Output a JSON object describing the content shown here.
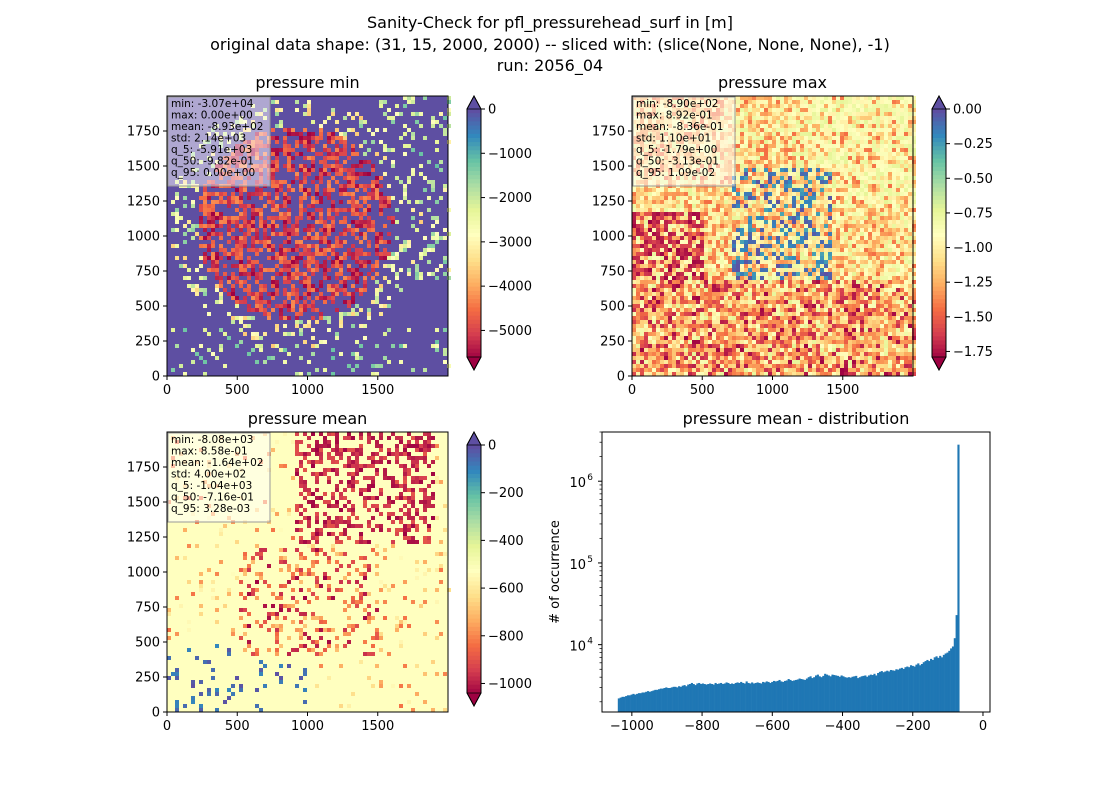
{
  "figure": {
    "title_lines": [
      "Sanity-Check for pfl_pressurehead_surf in [m]",
      "original data shape: (31, 15, 2000, 2000) -- sliced with: (slice(None, None, None), -1)",
      "run: 2056_04"
    ]
  },
  "chart_data": [
    {
      "type": "heatmap",
      "title": "pressure min",
      "xlim": [
        0,
        2000
      ],
      "ylim": [
        0,
        2000
      ],
      "x_ticks": [
        0,
        500,
        1000,
        1500
      ],
      "y_ticks": [
        0,
        250,
        500,
        750,
        1000,
        1250,
        1500,
        1750
      ],
      "colorbar": {
        "cmap": "Spectral",
        "range": [
          -5600,
          0
        ],
        "ticks": [
          "0",
          "−1000",
          "−2000",
          "−3000",
          "−4000",
          "−5000"
        ],
        "tick_values": [
          0,
          -1000,
          -2000,
          -3000,
          -4000,
          -5000
        ],
        "extend": "both"
      },
      "stats": [
        "min: -3.07e+04",
        "max: 0.00e+00",
        "mean: -8.93e+02",
        "std: 2.14e+03",
        "q_5: -5.91e+03",
        "q_50: -9.82e-01",
        "q_95: 0.00e+00"
      ]
    },
    {
      "type": "heatmap",
      "title": "pressure max",
      "xlim": [
        0,
        2000
      ],
      "ylim": [
        0,
        2000
      ],
      "x_ticks": [
        0,
        500,
        1000,
        1500
      ],
      "y_ticks": [
        0,
        250,
        500,
        750,
        1000,
        1250,
        1500,
        1750
      ],
      "colorbar": {
        "cmap": "Spectral",
        "range": [
          -1.79,
          0.0
        ],
        "ticks": [
          "0.00",
          "−0.25",
          "−0.50",
          "−0.75",
          "−1.00",
          "−1.25",
          "−1.50",
          "−1.75"
        ],
        "tick_values": [
          0,
          -0.25,
          -0.5,
          -0.75,
          -1.0,
          -1.25,
          -1.5,
          -1.75
        ],
        "extend": "both"
      },
      "stats": [
        "min: -8.90e+02",
        "max: 8.92e-01",
        "mean: -8.36e-01",
        "std: 1.10e+01",
        "q_5: -1.79e+00",
        "q_50: -3.13e-01",
        "q_95: 1.09e-02"
      ]
    },
    {
      "type": "heatmap",
      "title": "pressure mean",
      "xlim": [
        0,
        2000
      ],
      "ylim": [
        0,
        2000
      ],
      "x_ticks": [
        0,
        500,
        1000,
        1500
      ],
      "y_ticks": [
        0,
        250,
        500,
        750,
        1000,
        1250,
        1500,
        1750
      ],
      "colorbar": {
        "cmap": "Spectral",
        "range": [
          -1040,
          0
        ],
        "ticks": [
          "0",
          "−200",
          "−400",
          "−600",
          "−800",
          "−1000"
        ],
        "tick_values": [
          0,
          -200,
          -400,
          -600,
          -800,
          -1000
        ],
        "extend": "both"
      },
      "stats": [
        "min: -8.08e+03",
        "max: 8.58e-01",
        "mean: -1.64e+02",
        "std: 4.00e+02",
        "q_5: -1.04e+03",
        "q_50: -7.16e-01",
        "q_95: 3.28e-03"
      ]
    },
    {
      "type": "bar",
      "title": "pressure mean - distribution",
      "ylabel": "# of occurrence",
      "xlabel": "",
      "yscale": "log",
      "xlim": [
        -1085,
        20
      ],
      "ylim": [
        1500,
        4000000
      ],
      "x_ticks": [
        -1000,
        -800,
        -600,
        -400,
        -200,
        0
      ],
      "x_tick_labels": [
        "−1000",
        "−800",
        "−600",
        "−400",
        "−200",
        "0"
      ],
      "y_ticks": [
        10000,
        100000,
        1000000
      ],
      "y_tick_labels": [
        "10",
        "10",
        "10"
      ],
      "y_tick_exponents": [
        "4",
        "5",
        "6"
      ],
      "bar_color": "#1f77b4",
      "bins": {
        "start": -1040,
        "width": 5.2
      },
      "values": [
        2200,
        2250,
        2300,
        2300,
        2350,
        2400,
        2400,
        2450,
        2500,
        2450,
        2500,
        2550,
        2550,
        2600,
        2600,
        2650,
        2700,
        2650,
        2700,
        2750,
        2800,
        2800,
        2850,
        2900,
        2900,
        2950,
        3000,
        2950,
        2950,
        3000,
        3050,
        3050,
        3000,
        3100,
        3050,
        3150,
        3200,
        3100,
        3250,
        3300,
        3400,
        3300,
        3200,
        3350,
        3400,
        3300,
        3350,
        3300,
        3250,
        3300,
        3350,
        3300,
        3250,
        3400,
        3300,
        3350,
        3400,
        3300,
        3350,
        3450,
        3400,
        3300,
        3350,
        3300,
        3400,
        3450,
        3400,
        3500,
        3400,
        3350,
        3550,
        3400,
        3350,
        3450,
        3350,
        3400,
        3450,
        3400,
        3350,
        3500,
        3450,
        3550,
        3500,
        3400,
        3500,
        3600,
        3550,
        3600,
        3700,
        3550,
        3500,
        3600,
        3650,
        3800,
        3700,
        3600,
        3650,
        3700,
        3750,
        3850,
        3800,
        3750,
        3700,
        3850,
        4000,
        4100,
        3900,
        4000,
        4200,
        4300,
        4100,
        4000,
        4150,
        4400,
        4300,
        4200,
        4100,
        4300,
        4250,
        4200,
        4150,
        4050,
        4200,
        4100,
        4000,
        3950,
        4000,
        3950,
        4050,
        4100,
        4150,
        3900,
        4000,
        4100,
        4150,
        4200,
        4050,
        4200,
        4300,
        4250,
        4400,
        4200,
        4500,
        4650,
        4750,
        4600,
        4700,
        4800,
        4700,
        4900,
        4850,
        4800,
        5000,
        4950,
        5100,
        5200,
        5050,
        5300,
        5400,
        5300,
        5600,
        5500,
        5400,
        5700,
        5900,
        5600,
        5800,
        6100,
        6300,
        6500,
        6300,
        6700,
        6500,
        7000,
        7200,
        6900,
        7300,
        7000,
        7500,
        7800,
        8000,
        8400,
        9000,
        9500,
        12000,
        23000,
        2800000
      ]
    }
  ]
}
